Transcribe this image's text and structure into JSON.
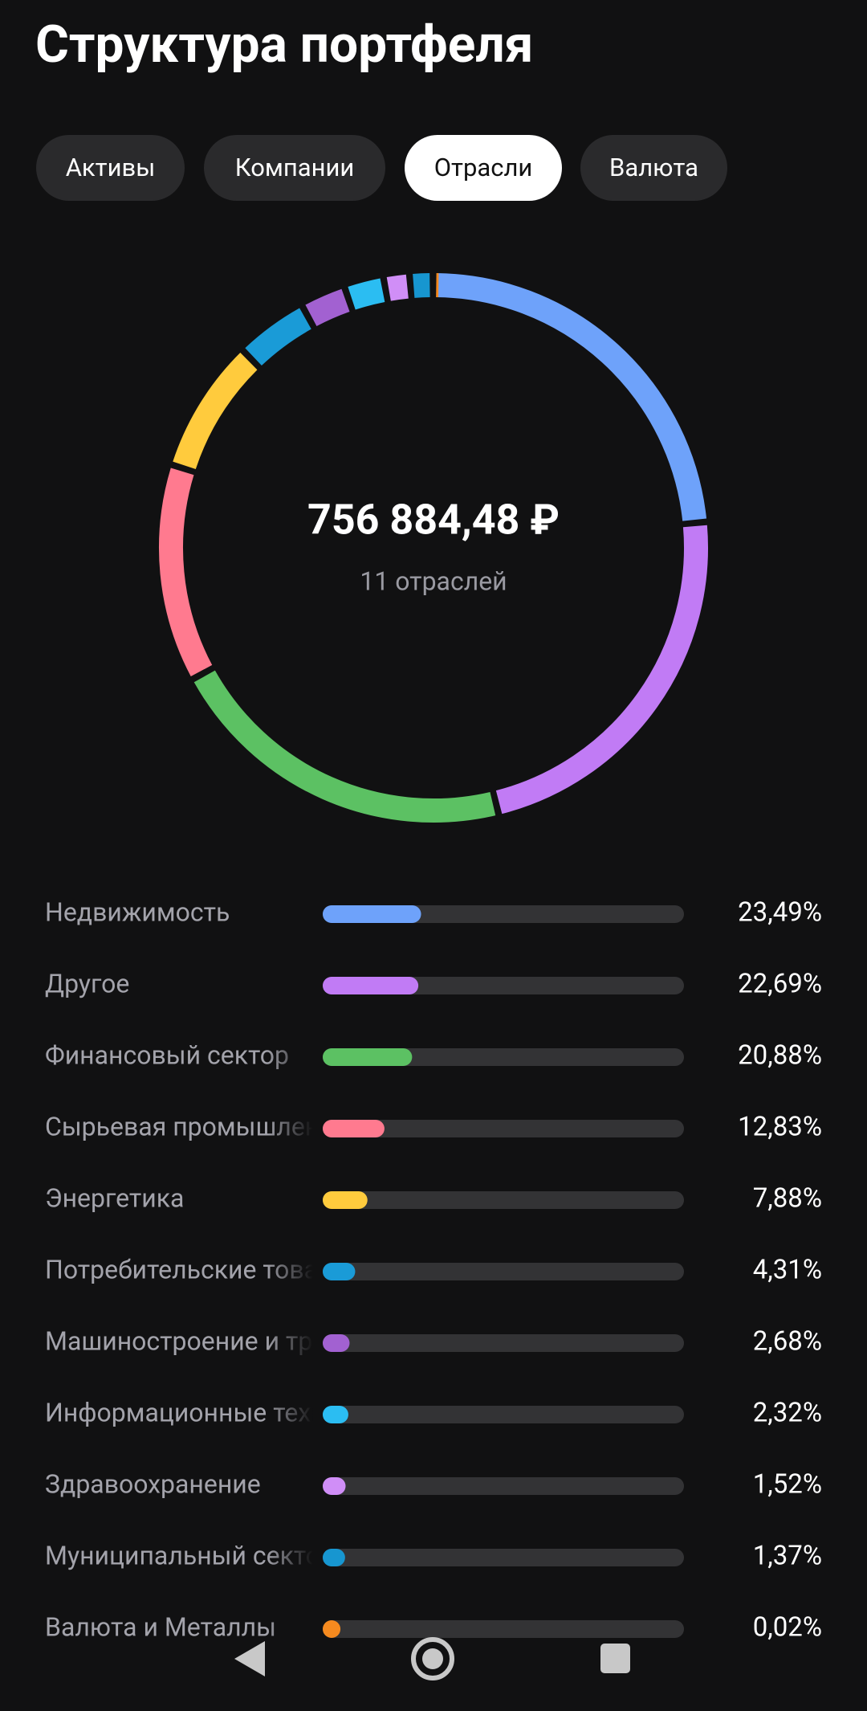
{
  "header": {
    "title": "Структура портфеля"
  },
  "tabs": [
    "Активы",
    "Компании",
    "Отрасли",
    "Валюта"
  ],
  "active_tab": 2,
  "chart_data": {
    "type": "donut",
    "center_value": "756 884,48 ₽",
    "center_label": "11 отраслей",
    "categories": [
      "Недвижимость",
      "Другое",
      "Финансовый сектор",
      "Сырьевая промышленность",
      "Энергетика",
      "Потребительские товары",
      "Машиностроение и транспорт",
      "Информационные технологии",
      "Здравоохранение",
      "Муниципальный сектор",
      "Валюта и Металлы"
    ],
    "values": [
      23.49,
      22.69,
      20.88,
      12.83,
      7.88,
      4.31,
      2.68,
      2.32,
      1.52,
      1.37,
      0.02
    ],
    "value_labels": [
      "23,49%",
      "22,69%",
      "20,88%",
      "12,83%",
      "7,88%",
      "4,31%",
      "2,68%",
      "2,32%",
      "1,52%",
      "1,37%",
      "0,02%"
    ],
    "colors": [
      "#6ea2fa",
      "#c17bf5",
      "#5cc163",
      "#ff7a8f",
      "#ffcb3d",
      "#1a9bd7",
      "#a261d1",
      "#2bbdf2",
      "#d08ef7",
      "#1796d0",
      "#f58a1f"
    ]
  }
}
